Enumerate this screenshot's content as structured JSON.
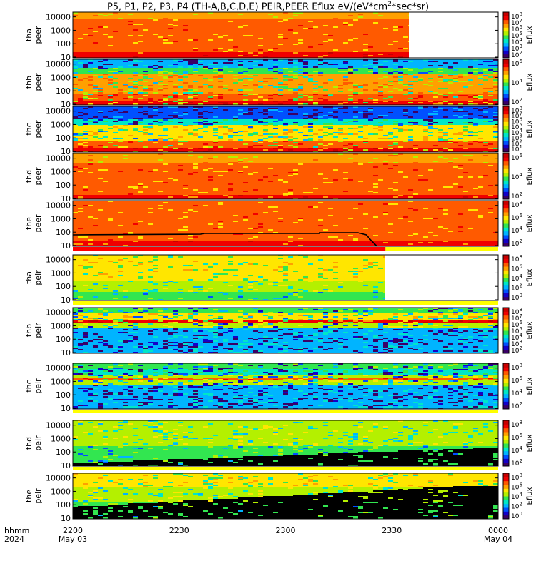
{
  "title": {
    "main": "P5, P1, P2, P3, P4 (TH-A,B,C,D,E) PEIR,PEER Eflux eV/(eV*cm",
    "sup": "2",
    "tail": "*sec*sr)"
  },
  "colors": {
    "colormap": [
      "#3a0066",
      "#1400c8",
      "#0050ff",
      "#00b4ff",
      "#00e6c8",
      "#32e650",
      "#b4f000",
      "#ffe600",
      "#ffa000",
      "#ff5a00",
      "#f00000",
      "#c80000"
    ],
    "fill": "#000000",
    "bar_red": "#ff0000",
    "bar_yellow": "#ffff00"
  },
  "chart_data": {
    "type": "heatmap",
    "x": {
      "ticks": [
        "2200",
        "2230",
        "2300",
        "2330",
        "0000"
      ],
      "dates": [
        "May 03",
        "",
        "",
        "",
        "May 04"
      ],
      "label": [
        "hhmm",
        "2024"
      ],
      "range_minutes": [
        0,
        120
      ]
    },
    "y_ticks": [
      "10000",
      "1000",
      "100",
      "10"
    ],
    "panels": [
      {
        "name": "tha-peer",
        "probe": "tha",
        "species": "peer",
        "data_end": 0.79,
        "cb_ticks": [
          "10^8",
          "10^7",
          "10^6",
          "10^5",
          "10^4",
          "10^3",
          "10^2"
        ],
        "cb_label": "Eflux",
        "profile": "e-hot",
        "noise": 0.05,
        "curve": false,
        "bar_after": null
      },
      {
        "name": "thb-peer",
        "probe": "thb",
        "species": "peer",
        "data_end": 1.0,
        "cb_ticks": [
          "10^6",
          "10^4",
          "10^2"
        ],
        "cb_label": "Eflux",
        "profile": "e-noisy",
        "noise": 0.16,
        "curve": false,
        "bar_after": null
      },
      {
        "name": "thc-peer",
        "probe": "thc",
        "species": "peer",
        "data_end": 1.0,
        "cb_ticks": [
          "10^8",
          "10^7",
          "10^6",
          "10^5",
          "10^4",
          "10^3",
          "10^2",
          "10^1"
        ],
        "cb_label": "Eflux",
        "profile": "e-noisy2",
        "noise": 0.16,
        "curve": false,
        "bar_after": null
      },
      {
        "name": "thd-peer",
        "probe": "thd",
        "species": "peer",
        "data_end": 1.0,
        "cb_ticks": [
          "10^6",
          "10^4",
          "10^2"
        ],
        "cb_label": "Eflux",
        "profile": "e-warm",
        "noise": 0.05,
        "curve": false,
        "bar_after": null
      },
      {
        "name": "the-peer",
        "probe": "the",
        "species": "peer",
        "data_end": 1.0,
        "cb_ticks": [
          "10^8",
          "10^6",
          "10^4",
          "10^2"
        ],
        "cb_label": "Eflux",
        "profile": "e-hot2",
        "noise": 0.04,
        "curve": true,
        "bar_after": "red-yellow"
      },
      {
        "name": "tha-peir",
        "probe": "tha",
        "species": "peir",
        "data_end": 0.735,
        "cb_ticks": [
          "10^8",
          "10^6",
          "10^4",
          "10^2",
          "10^0"
        ],
        "cb_label": "Eflux",
        "profile": "i-a",
        "noise": 0.07,
        "curve": false,
        "bar_after": "yellow"
      },
      {
        "name": "thb-peir",
        "probe": "thb",
        "species": "peir",
        "data_end": 1.0,
        "cb_ticks": [
          "10^8",
          "10^7",
          "10^6",
          "10^5",
          "10^4",
          "10^3",
          "10^2"
        ],
        "cb_label": "Eflux",
        "profile": "i-b",
        "noise": 0.18,
        "curve": false,
        "bar_after": null
      },
      {
        "name": "thc-peir",
        "probe": "thc",
        "species": "peir",
        "data_end": 1.0,
        "cb_ticks": [
          "10^8",
          "10^6",
          "10^4",
          "10^2"
        ],
        "cb_label": "Eflux",
        "profile": "i-c",
        "noise": 0.18,
        "curve": false,
        "bar_after": "yellow"
      },
      {
        "name": "thd-peir",
        "probe": "thd",
        "species": "peir",
        "data_end": 1.0,
        "cb_ticks": [
          "10^8",
          "10^6",
          "10^4",
          "10^2"
        ],
        "cb_label": "Eflux",
        "profile": "i-d",
        "noise": 0.09,
        "curve": false,
        "bar_after": "yellow"
      },
      {
        "name": "the-peir",
        "probe": "the",
        "species": "peir",
        "data_end": 1.0,
        "cb_ticks": [
          "10^8",
          "10^6",
          "10^4",
          "10^2",
          "10^0"
        ],
        "cb_label": "Eflux",
        "profile": "i-e",
        "noise": 0.09,
        "curve": false,
        "bar_after": null
      }
    ]
  }
}
